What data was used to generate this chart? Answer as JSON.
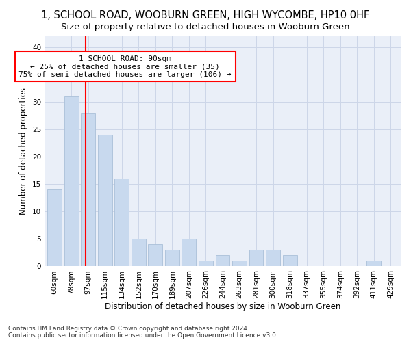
{
  "title": "1, SCHOOL ROAD, WOOBURN GREEN, HIGH WYCOMBE, HP10 0HF",
  "subtitle": "Size of property relative to detached houses in Wooburn Green",
  "xlabel": "Distribution of detached houses by size in Wooburn Green",
  "ylabel": "Number of detached properties",
  "categories": [
    "60sqm",
    "78sqm",
    "97sqm",
    "115sqm",
    "134sqm",
    "152sqm",
    "170sqm",
    "189sqm",
    "207sqm",
    "226sqm",
    "244sqm",
    "263sqm",
    "281sqm",
    "300sqm",
    "318sqm",
    "337sqm",
    "355sqm",
    "374sqm",
    "392sqm",
    "411sqm",
    "429sqm"
  ],
  "values": [
    14,
    31,
    28,
    24,
    16,
    5,
    4,
    3,
    5,
    1,
    2,
    1,
    3,
    3,
    2,
    0,
    0,
    0,
    0,
    1,
    0
  ],
  "bar_color": "#c8d9ee",
  "bar_edge_color": "#aac0d8",
  "red_line_x": 1.85,
  "annotation_line1": "1 SCHOOL ROAD: 90sqm",
  "annotation_line2": "← 25% of detached houses are smaller (35)",
  "annotation_line3": "75% of semi-detached houses are larger (106) →",
  "footnote1": "Contains HM Land Registry data © Crown copyright and database right 2024.",
  "footnote2": "Contains public sector information licensed under the Open Government Licence v3.0.",
  "ylim": [
    0,
    42
  ],
  "yticks": [
    0,
    5,
    10,
    15,
    20,
    25,
    30,
    35,
    40
  ],
  "grid_color": "#cdd6e8",
  "bg_color": "#eaeff8",
  "title_fontsize": 10.5,
  "subtitle_fontsize": 9.5,
  "axis_label_fontsize": 8.5,
  "tick_fontsize": 7.5,
  "annot_fontsize": 8,
  "footnote_fontsize": 6.5
}
